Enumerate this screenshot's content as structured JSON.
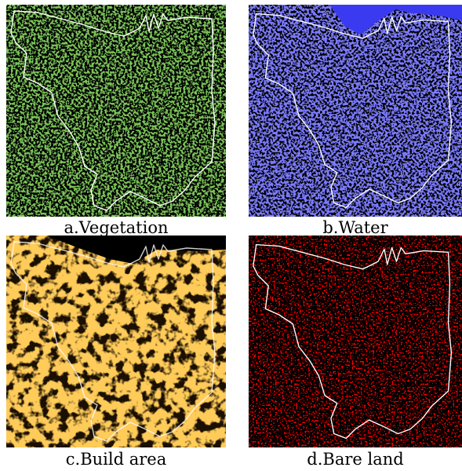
{
  "panels": [
    {
      "caption": "a.Vegetation"
    },
    {
      "caption": "b.Water"
    },
    {
      "caption": "c.Build area"
    },
    {
      "caption": "d.Bare land"
    }
  ]
}
